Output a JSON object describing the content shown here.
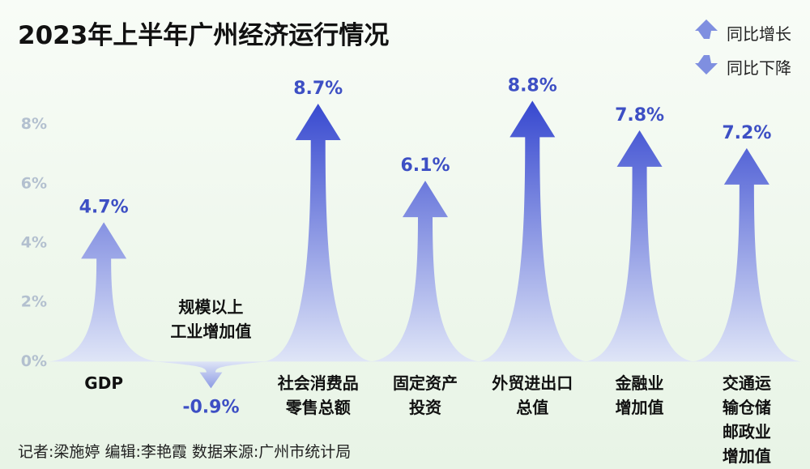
{
  "chart_data": {
    "type": "arrow",
    "title": "2023年上半年广州经济运行情况",
    "legend": [
      "同比增长",
      "同比下降"
    ],
    "footer": "记者:梁施婷  编辑:李艳霞  数据来源:广州市统计局",
    "categories": [
      "GDP",
      "规模以上\n工业增加值",
      "社会消费品\n零售总额",
      "固定资产\n投资",
      "外贸进出口\n总值",
      "金融业\n增加值",
      "交通运输仓储\n邮政业增加值"
    ],
    "values": [
      4.7,
      -0.9,
      8.7,
      6.1,
      8.8,
      7.8,
      7.2
    ],
    "value_labels": [
      "4.7%",
      "-0.9%",
      "8.7%",
      "6.1%",
      "8.8%",
      "7.8%",
      "7.2%"
    ],
    "color": "#3446cf",
    "ylim": [
      -1,
      9
    ],
    "yticks": [
      {
        "value": 0,
        "label": "0%"
      },
      {
        "value": 2,
        "label": "2%"
      },
      {
        "value": 4,
        "label": "4%"
      },
      {
        "value": 6,
        "label": "6%"
      },
      {
        "value": 8,
        "label": "8%"
      }
    ],
    "grid": false
  }
}
